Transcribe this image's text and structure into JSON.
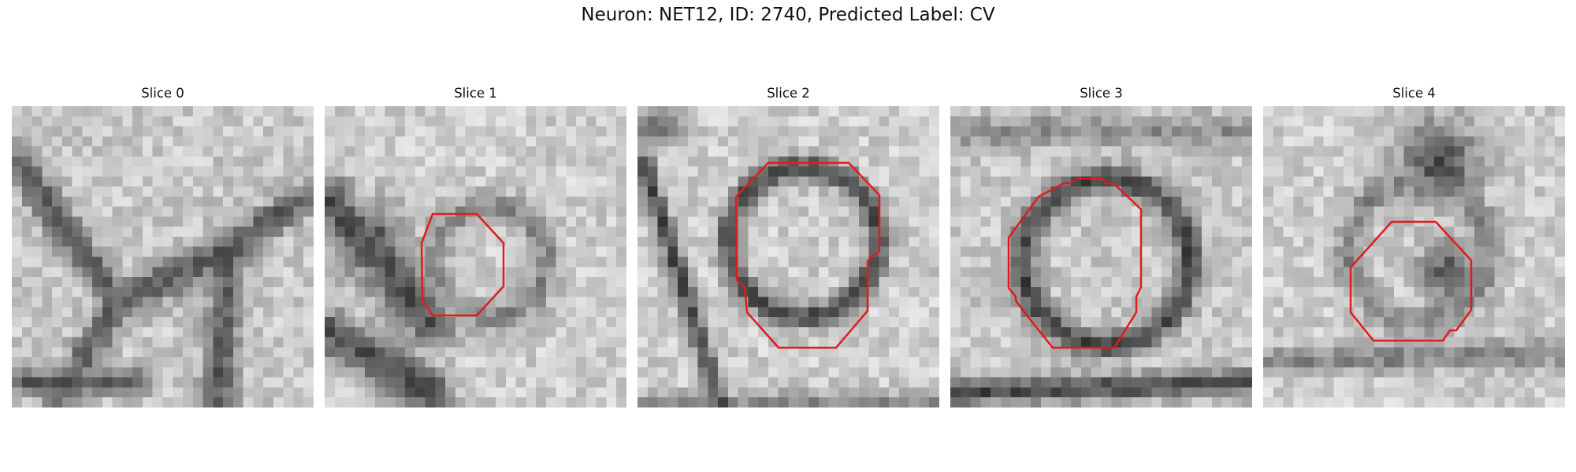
{
  "figure": {
    "title": "Neuron: NET12, ID: 2740, Predicted Label: CV",
    "overlay_color": "#e31a1c",
    "colormap": "gray",
    "slices": [
      {
        "label": "Slice 0",
        "has_contour": false
      },
      {
        "label": "Slice 1",
        "has_contour": true
      },
      {
        "label": "Slice 2",
        "has_contour": true
      },
      {
        "label": "Slice 3",
        "has_contour": true
      },
      {
        "label": "Slice 4",
        "has_contour": true
      }
    ]
  }
}
